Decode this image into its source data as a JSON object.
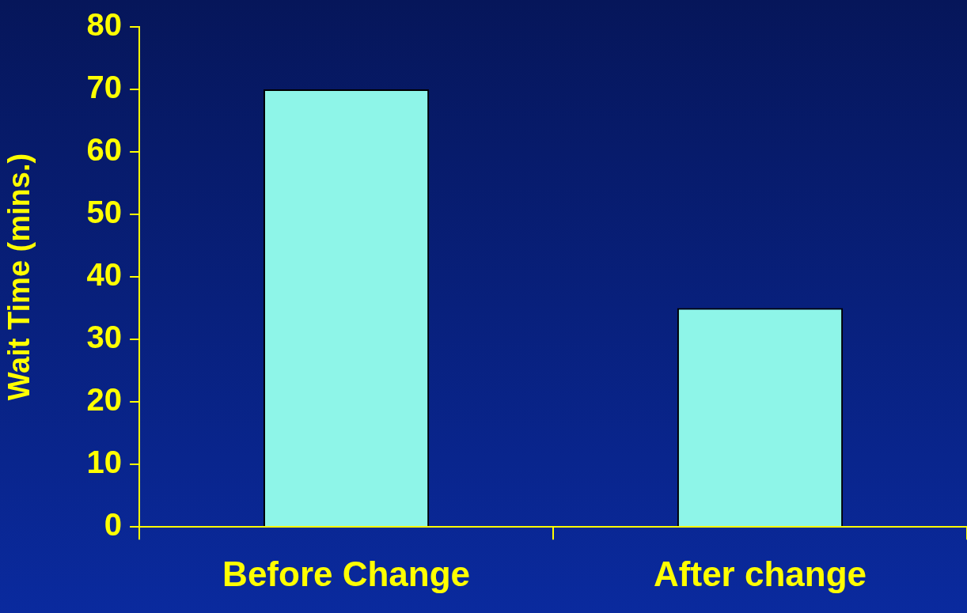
{
  "chart_data": {
    "type": "bar",
    "ylabel": "Wait Time (mins.)",
    "categories": [
      "Before Change",
      "After change"
    ],
    "values": [
      70,
      35
    ],
    "color": "#8ef5e8",
    "ylim": [
      0,
      80
    ],
    "yticks": [
      0,
      10,
      20,
      30,
      40,
      50,
      60,
      70,
      80
    ],
    "grid": false,
    "legend": false
  }
}
